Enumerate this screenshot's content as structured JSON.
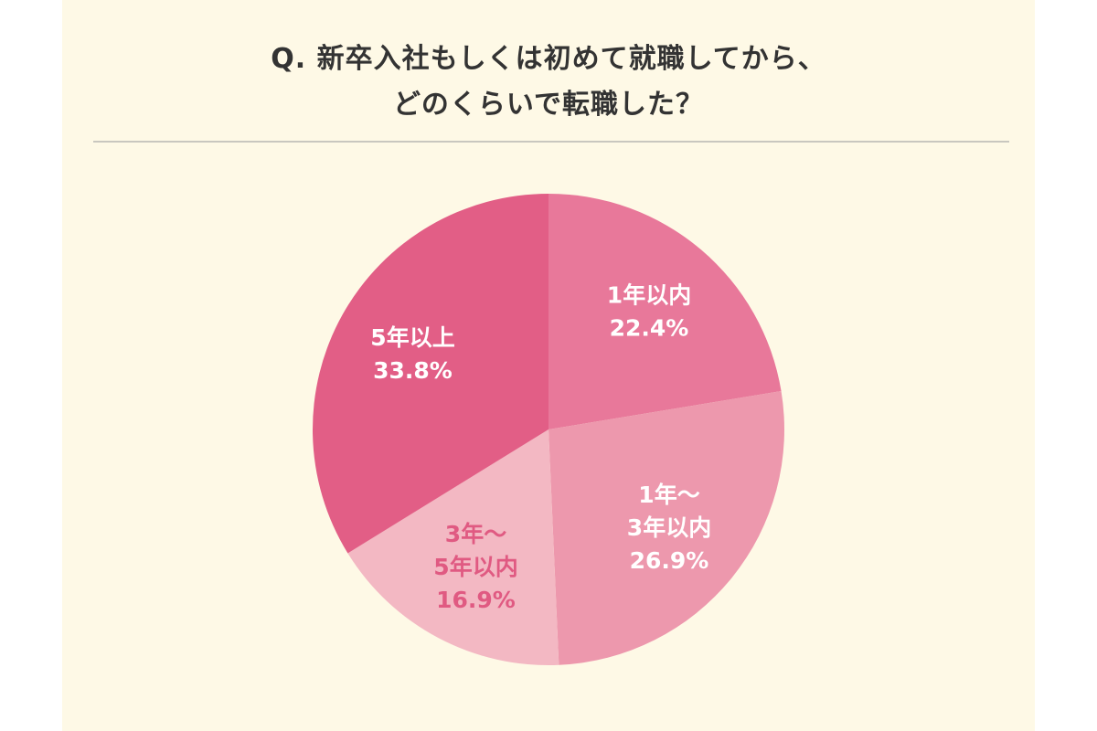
{
  "chart_data": {
    "type": "pie",
    "title": "Q. 新卒入社もしくは初めて就職してから、",
    "title_line2": "どのくらいで転職した？",
    "slices": [
      {
        "label": [
          "1年以内"
        ],
        "value": 22.4,
        "value_label": "22.4%",
        "color": "#e8789a",
        "text_color": "#ffffff"
      },
      {
        "label": [
          "1年～",
          "3年以内"
        ],
        "value": 26.9,
        "value_label": "26.9%",
        "color": "#ed98ad",
        "text_color": "#ffffff"
      },
      {
        "label": [
          "3年～",
          "5年以内"
        ],
        "value": 16.9,
        "value_label": "16.9%",
        "color": "#f3b8c3",
        "text_color": "#e05a82"
      },
      {
        "label": [
          "5年以上"
        ],
        "value": 33.8,
        "value_label": "33.8%",
        "color": "#e25e86",
        "text_color": "#ffffff"
      }
    ],
    "start": "12 o'clock",
    "direction": "clockwise"
  }
}
